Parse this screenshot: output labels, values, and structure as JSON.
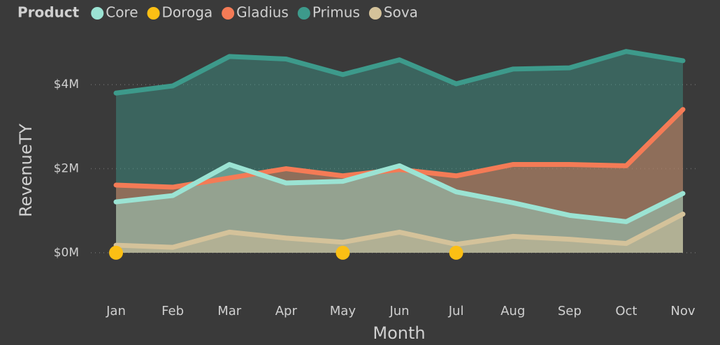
{
  "chart_data": {
    "type": "area",
    "legend_title": "Product",
    "x_label": "Month",
    "y_label": "RevenueTY",
    "categories": [
      "Jan",
      "Feb",
      "Mar",
      "Apr",
      "May",
      "Jun",
      "Jul",
      "Aug",
      "Sep",
      "Oct",
      "Nov"
    ],
    "series": [
      {
        "name": "Core",
        "color": "#9be3d3",
        "values": [
          1.21,
          1.36,
          2.1,
          1.66,
          1.7,
          2.07,
          1.45,
          1.19,
          0.89,
          0.74,
          1.41
        ]
      },
      {
        "name": "Doroga",
        "color": "#fbbf14",
        "values": [
          0,
          null,
          null,
          null,
          0,
          null,
          0,
          null,
          null,
          null,
          null
        ]
      },
      {
        "name": "Gladius",
        "color": "#f47b56",
        "values": [
          1.61,
          1.56,
          1.78,
          2.0,
          1.83,
          1.98,
          1.83,
          2.1,
          2.1,
          2.07,
          3.41
        ]
      },
      {
        "name": "Primus",
        "color": "#3d9a8b",
        "values": [
          3.8,
          3.97,
          4.67,
          4.61,
          4.24,
          4.59,
          4.02,
          4.37,
          4.4,
          4.79,
          4.57
        ]
      },
      {
        "name": "Sova",
        "color": "#d4c29a",
        "values": [
          0.18,
          0.13,
          0.49,
          0.35,
          0.25,
          0.49,
          0.2,
          0.39,
          0.32,
          0.22,
          0.92
        ]
      }
    ],
    "ylim": [
      -0.6,
      5.1
    ],
    "yticks": [
      {
        "value": 0,
        "label": "$0M"
      },
      {
        "value": 2,
        "label": "$2M"
      },
      {
        "value": 4,
        "label": "$4M"
      }
    ],
    "grid": true,
    "legend": "top-left"
  }
}
